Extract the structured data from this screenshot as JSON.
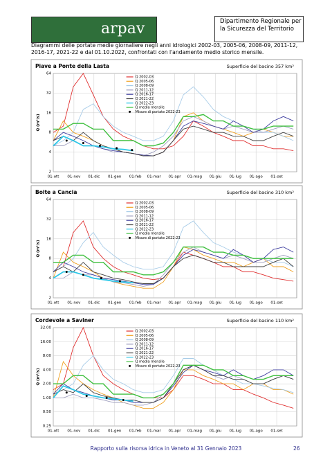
{
  "header": {
    "logo_text": "arpav",
    "department": "Dipartimento Regionale per la Sicurezza del Territorio"
  },
  "caption": "Diagrammi delle portate medie giornaliere negli anni idrologici 2002-03, 2005-06, 2008-09, 2011-12, 2016-17, 2021-22 e dal 01.10.2022, confrontati con l'andamento medio storico mensile.",
  "footer": {
    "text": "Rapporto sulla risorsa idrica in Veneto al 31 Gennaio 2023",
    "page": "26"
  },
  "chart_data": [
    {
      "type": "line",
      "title": "Piave a Ponte della Lasta",
      "subtitle": "Superficie del bacino 357 km²",
      "y_label": "Q (m³/s)",
      "yscale": "log",
      "grid": true,
      "xlim": [
        0,
        365
      ],
      "ylim": [
        2,
        64
      ],
      "yticks": [
        2,
        4,
        8,
        16,
        32,
        64
      ],
      "xticks": [
        {
          "value": 0,
          "label": "01-ott"
        },
        {
          "value": 31,
          "label": "01-nov"
        },
        {
          "value": 61,
          "label": "01-dic"
        },
        {
          "value": 92,
          "label": "01-gen"
        },
        {
          "value": 123,
          "label": "01-feb"
        },
        {
          "value": 151,
          "label": "01-mar"
        },
        {
          "value": 182,
          "label": "01-apr"
        },
        {
          "value": 212,
          "label": "01-mag"
        },
        {
          "value": 243,
          "label": "01-giu"
        },
        {
          "value": 273,
          "label": "01-lug"
        },
        {
          "value": 304,
          "label": "01-ago"
        },
        {
          "value": 335,
          "label": "01-set"
        }
      ],
      "x": [
        0,
        15,
        30,
        45,
        60,
        75,
        90,
        105,
        120,
        135,
        150,
        165,
        180,
        195,
        210,
        225,
        240,
        255,
        270,
        285,
        300,
        315,
        330,
        345,
        360
      ],
      "series": [
        {
          "name": "Q 2002-03",
          "color": "#e03030",
          "values": [
            8,
            10,
            40,
            64,
            30,
            14,
            9,
            7,
            6,
            5,
            4.5,
            4.5,
            5,
            7,
            12,
            10,
            8,
            7,
            6,
            6,
            5,
            5,
            4.5,
            4.5,
            4.2
          ]
        },
        {
          "name": "Q 2005-06",
          "color": "#f0a020",
          "values": [
            6,
            12,
            8,
            7,
            6,
            5,
            4.5,
            4,
            3.8,
            3.5,
            3.5,
            4,
            6,
            14,
            16,
            12,
            10,
            9,
            8,
            7,
            8,
            9,
            8,
            7,
            7
          ]
        },
        {
          "name": "Q 2008-09",
          "color": "#a8cce8",
          "values": [
            5,
            6,
            8,
            18,
            22,
            14,
            10,
            8,
            7,
            6,
            6,
            7,
            12,
            30,
            40,
            28,
            18,
            14,
            12,
            10,
            9,
            8,
            8,
            7,
            6
          ]
        },
        {
          "name": "Q 2011-12",
          "color": "#a0a0c0",
          "values": [
            5,
            5,
            6,
            5,
            5,
            4.5,
            4,
            4,
            3.8,
            3.5,
            4,
            5,
            7,
            12,
            14,
            12,
            10,
            9,
            10,
            9,
            8,
            8,
            9,
            10,
            9
          ]
        },
        {
          "name": "Q 2016-17",
          "color": "#4040a0",
          "values": [
            6,
            8,
            7,
            6,
            5,
            4.5,
            4.2,
            4,
            3.8,
            3.6,
            3.5,
            4,
            6,
            10,
            12,
            11,
            10,
            9,
            12,
            10,
            8,
            9,
            12,
            14,
            12
          ]
        },
        {
          "name": "Q 2021-22",
          "color": "#404040",
          "values": [
            6,
            7,
            6,
            8,
            6,
            5,
            4.5,
            4,
            3.8,
            3.5,
            3.5,
            4,
            6,
            9,
            10,
            9,
            8,
            8,
            7,
            7,
            6,
            6,
            7,
            8,
            7
          ]
        },
        {
          "name": "Q 2022-23",
          "color": "#30c8e8",
          "values": [
            5,
            7,
            6,
            5,
            5,
            4.8,
            4.5,
            4.4,
            4.2,
            null,
            null,
            null,
            null,
            null,
            null,
            null,
            null,
            null,
            null,
            null,
            null,
            null,
            null,
            null,
            null
          ]
        },
        {
          "name": "Q media mensile",
          "color": "#40c040",
          "values": [
            9,
            9,
            11,
            11,
            9,
            9,
            6,
            6,
            6,
            5,
            5,
            5.5,
            8,
            14,
            14,
            15,
            12,
            12,
            10,
            10,
            9,
            9,
            10,
            10,
            10
          ]
        }
      ],
      "measurements": {
        "name": "Misure di portate 2022-23",
        "color": "#000000",
        "x": [
          20,
          45,
          70,
          95,
          118
        ],
        "values": [
          6,
          5.5,
          5,
          4.6,
          4.3
        ]
      }
    },
    {
      "type": "line",
      "title": "Boite a Cancia",
      "subtitle": "Superficie del bacino 310 km²",
      "y_label": "Q (m³/s)",
      "yscale": "log",
      "grid": true,
      "xlim": [
        0,
        365
      ],
      "ylim": [
        2,
        64
      ],
      "yticks": [
        2,
        4,
        8,
        16,
        32,
        64
      ],
      "xticks": [
        {
          "value": 0,
          "label": "01-ott"
        },
        {
          "value": 31,
          "label": "01-nov"
        },
        {
          "value": 61,
          "label": "01-dic"
        },
        {
          "value": 92,
          "label": "01-gen"
        },
        {
          "value": 123,
          "label": "01-feb"
        },
        {
          "value": 151,
          "label": "01-mar"
        },
        {
          "value": 182,
          "label": "01-apr"
        },
        {
          "value": 212,
          "label": "01-mag"
        },
        {
          "value": 243,
          "label": "01-giu"
        },
        {
          "value": 273,
          "label": "01-lug"
        },
        {
          "value": 304,
          "label": "01-ago"
        },
        {
          "value": 335,
          "label": "01-set"
        }
      ],
      "x": [
        0,
        15,
        30,
        45,
        60,
        75,
        90,
        105,
        120,
        135,
        150,
        165,
        180,
        195,
        210,
        225,
        240,
        255,
        270,
        285,
        300,
        315,
        330,
        345,
        360
      ],
      "series": [
        {
          "name": "Q 2002-03",
          "color": "#e03030",
          "values": [
            5,
            6,
            20,
            30,
            12,
            8,
            6,
            5,
            4.5,
            4,
            3.8,
            4,
            6,
            10,
            9,
            8,
            7,
            6,
            6,
            5,
            5,
            4.5,
            4,
            3.8,
            3.6
          ]
        },
        {
          "name": "Q 2005-06",
          "color": "#f0a020",
          "values": [
            4,
            10,
            7,
            6,
            5,
            4,
            3.5,
            3.2,
            3,
            2.8,
            2.8,
            3.5,
            6,
            12,
            11,
            9,
            8,
            7,
            7,
            6,
            7,
            8,
            6,
            6,
            5
          ]
        },
        {
          "name": "Q 2008-09",
          "color": "#a8cce8",
          "values": [
            5,
            6,
            8,
            14,
            20,
            12,
            9,
            7,
            6,
            5.5,
            5.5,
            6,
            10,
            24,
            30,
            20,
            14,
            12,
            10,
            9,
            8,
            8,
            7,
            7,
            6
          ]
        },
        {
          "name": "Q 2011-12",
          "color": "#a0a0c0",
          "values": [
            4,
            4,
            5,
            4.5,
            4.5,
            4,
            3.5,
            3.4,
            3.2,
            3,
            3.2,
            4.5,
            7,
            10,
            12,
            10,
            9,
            8,
            9,
            8,
            7,
            7,
            8,
            9,
            8
          ]
        },
        {
          "name": "Q 2016-17",
          "color": "#4040a0",
          "values": [
            5,
            7,
            6,
            5,
            4.5,
            4,
            3.8,
            3.6,
            3.4,
            3.2,
            3.2,
            4,
            6,
            9,
            11,
            10,
            9,
            8,
            11,
            9,
            7,
            8,
            11,
            12,
            10
          ]
        },
        {
          "name": "Q 2021-22",
          "color": "#404040",
          "values": [
            5,
            6,
            5,
            7,
            5,
            4.5,
            4,
            3.8,
            3.5,
            3.3,
            3.3,
            4,
            6,
            8,
            9,
            8,
            7,
            7,
            6,
            6,
            6,
            6,
            7,
            8,
            6
          ]
        },
        {
          "name": "Q 2022-23",
          "color": "#30c8e8",
          "values": [
            4,
            5,
            5,
            4.5,
            4,
            3.8,
            3.6,
            3.5,
            3.4,
            null,
            null,
            null,
            null,
            null,
            null,
            null,
            null,
            null,
            null,
            null,
            null,
            null,
            null,
            null,
            null
          ]
        },
        {
          "name": "Q media mensile",
          "color": "#40c040",
          "values": [
            7,
            7,
            9,
            9,
            7,
            7,
            5,
            5,
            5,
            4.5,
            4.5,
            5,
            7,
            12,
            12,
            12,
            10,
            10,
            9,
            9,
            8,
            8,
            8,
            8,
            8
          ]
        }
      ],
      "measurements": {
        "name": "Misure di portate 2022-23",
        "color": "#000000",
        "x": [
          20,
          45,
          72,
          100
        ],
        "values": [
          5,
          4.5,
          4,
          3.6
        ]
      }
    },
    {
      "type": "line",
      "title": "Cordevole a Saviner",
      "subtitle": "Superficie del bacino 110 km²",
      "y_label": "Q (m³/s)",
      "yscale": "log",
      "grid": true,
      "xlim": [
        0,
        365
      ],
      "ylim": [
        0.25,
        32
      ],
      "yticks": [
        {
          "value": 0.25,
          "label": "0.25"
        },
        {
          "value": 0.5,
          "label": "0.50"
        },
        {
          "value": 1,
          "label": "1.00"
        },
        {
          "value": 2,
          "label": "2.00"
        },
        {
          "value": 4,
          "label": "4.00"
        },
        {
          "value": 8,
          "label": "8.00"
        },
        {
          "value": 16,
          "label": "16.00"
        },
        {
          "value": 32,
          "label": "32.00"
        }
      ],
      "xticks": [
        {
          "value": 0,
          "label": "01-ott"
        },
        {
          "value": 31,
          "label": "01-nov"
        },
        {
          "value": 61,
          "label": "01-dic"
        },
        {
          "value": 92,
          "label": "01-gen"
        },
        {
          "value": 123,
          "label": "01-feb"
        },
        {
          "value": 151,
          "label": "01-mar"
        },
        {
          "value": 182,
          "label": "01-apr"
        },
        {
          "value": 212,
          "label": "01-mag"
        },
        {
          "value": 243,
          "label": "01-giu"
        },
        {
          "value": 273,
          "label": "01-lug"
        },
        {
          "value": 304,
          "label": "01-ago"
        },
        {
          "value": 335,
          "label": "01-set"
        }
      ],
      "x": [
        0,
        15,
        30,
        45,
        60,
        75,
        90,
        105,
        120,
        135,
        150,
        165,
        180,
        195,
        210,
        225,
        240,
        255,
        270,
        285,
        300,
        315,
        330,
        345,
        360
      ],
      "series": [
        {
          "name": "Q 2002-03",
          "color": "#e03030",
          "values": [
            1.5,
            2,
            12,
            32,
            8,
            3,
            2,
            1.5,
            1.2,
            1,
            1,
            1,
            1.5,
            3,
            3,
            2.5,
            2,
            2,
            1.5,
            1.5,
            1.2,
            1,
            0.8,
            0.7,
            0.6
          ]
        },
        {
          "name": "Q 2005-06",
          "color": "#f0a020",
          "values": [
            1,
            6,
            3,
            2,
            1.5,
            1.2,
            1,
            0.8,
            0.7,
            0.6,
            0.6,
            0.8,
            1.5,
            4,
            4,
            3,
            2.5,
            2,
            2,
            1.5,
            2,
            2,
            1.5,
            1.5,
            1.2
          ]
        },
        {
          "name": "Q 2008-09",
          "color": "#a8cce8",
          "values": [
            1.2,
            1.5,
            2,
            5,
            8,
            4,
            2.5,
            2,
            1.5,
            1.3,
            1.3,
            1.5,
            3,
            7,
            7,
            5,
            4,
            3,
            2.5,
            2,
            2,
            1.8,
            1.6,
            1.5,
            1.3
          ]
        },
        {
          "name": "Q 2011-12",
          "color": "#a0a0c0",
          "values": [
            1,
            1,
            1.2,
            1,
            1,
            0.9,
            0.8,
            0.8,
            0.7,
            0.7,
            0.8,
            1.2,
            2,
            4,
            5,
            4,
            3,
            2.5,
            3,
            2.5,
            2,
            2,
            2.5,
            3,
            2.5
          ]
        },
        {
          "name": "Q 2016-17",
          "color": "#4040a0",
          "values": [
            1.2,
            2,
            1.5,
            1.3,
            1.1,
            1,
            0.9,
            0.9,
            0.8,
            0.8,
            0.8,
            1,
            1.8,
            3.5,
            5,
            4,
            3.5,
            3,
            4,
            3,
            2.5,
            3,
            4,
            4,
            3
          ]
        },
        {
          "name": "Q 2021-22",
          "color": "#404040",
          "values": [
            1.2,
            1.5,
            1.3,
            2,
            1.3,
            1.1,
            1,
            0.9,
            0.9,
            0.8,
            0.8,
            1,
            2,
            4,
            5,
            4,
            3,
            3,
            2.5,
            2.5,
            2,
            2,
            2.5,
            3,
            2.5
          ]
        },
        {
          "name": "Q 2022-23",
          "color": "#30c8e8",
          "values": [
            1,
            1.8,
            1.5,
            1.2,
            1.1,
            1,
            0.95,
            0.9,
            0.85,
            null,
            null,
            null,
            null,
            null,
            null,
            null,
            null,
            null,
            null,
            null,
            null,
            null,
            null,
            null,
            null
          ]
        },
        {
          "name": "Q media mensile",
          "color": "#40c040",
          "values": [
            2,
            2,
            3,
            3,
            2,
            2,
            1.2,
            1.2,
            1.2,
            1,
            1,
            1.2,
            2,
            5,
            5,
            5,
            4,
            4,
            3,
            3,
            2.5,
            2.5,
            3,
            3,
            3
          ]
        }
      ],
      "measurements": {
        "name": "Misure di portate 2022-23",
        "color": "#000000",
        "x": [
          20,
          50,
          80,
          105
        ],
        "values": [
          1.3,
          1.1,
          1,
          0.9
        ]
      }
    }
  ]
}
